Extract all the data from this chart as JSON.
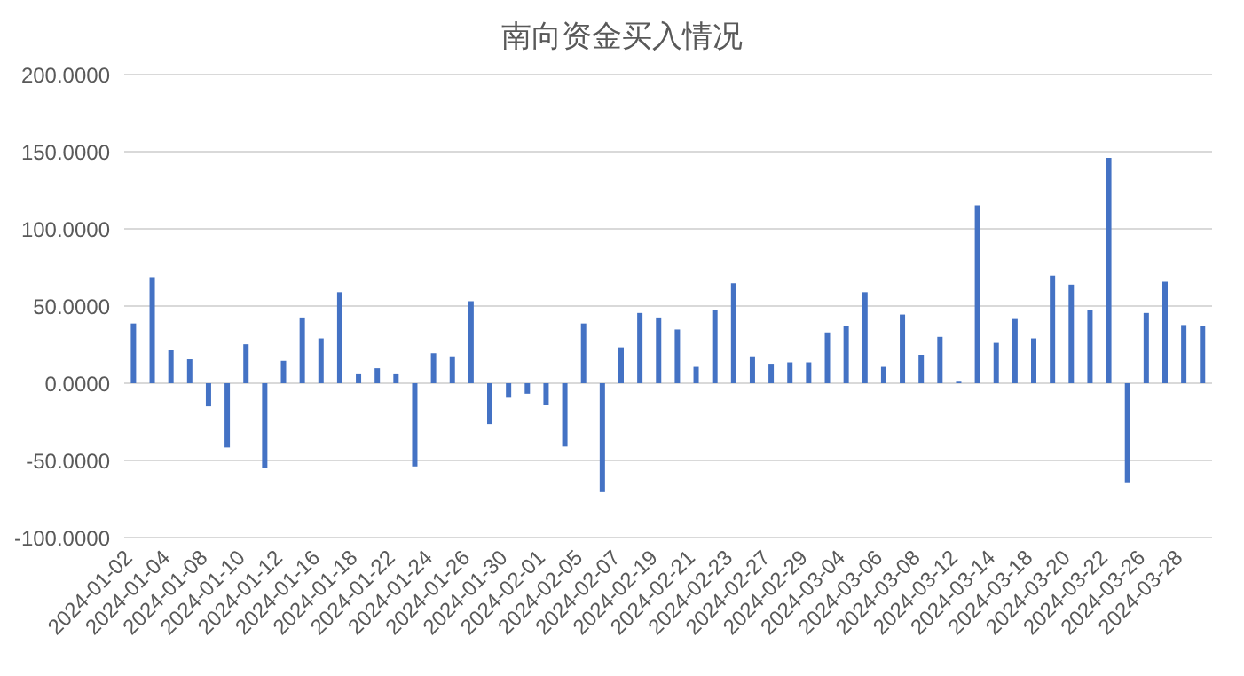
{
  "chart_data": {
    "type": "bar",
    "title": "南向资金买入情况",
    "categories": [
      "2024-01-02",
      null,
      "2024-01-04",
      null,
      "2024-01-08",
      null,
      "2024-01-10",
      null,
      "2024-01-12",
      null,
      "2024-01-16",
      null,
      "2024-01-18",
      null,
      "2024-01-22",
      null,
      "2024-01-24",
      null,
      "2024-01-26",
      null,
      "2024-01-30",
      null,
      "2024-02-01",
      null,
      "2024-02-05",
      null,
      "2024-02-07",
      null,
      "2024-02-19",
      null,
      "2024-02-21",
      null,
      "2024-02-23",
      null,
      "2024-02-27",
      null,
      "2024-02-29",
      null,
      "2024-03-04",
      null,
      "2024-03-06",
      null,
      "2024-03-08",
      null,
      "2024-03-12",
      null,
      "2024-03-14",
      null,
      "2024-03-18",
      null,
      "2024-03-20",
      null,
      "2024-03-22",
      null,
      "2024-03-26",
      null,
      "2024-03-28",
      null
    ],
    "values": [
      38.7,
      68.7,
      21.3,
      15.5,
      -15,
      -41.6,
      25.2,
      -54.8,
      14.5,
      42.6,
      29,
      59,
      5.8,
      9.7,
      5.8,
      -53.9,
      19.4,
      17.4,
      53.2,
      -26.5,
      -9.4,
      -6.8,
      -14.2,
      -41,
      38.7,
      -70.6,
      23.2,
      45.5,
      42.6,
      34.8,
      10.6,
      47.4,
      64.8,
      17.4,
      12.6,
      13.5,
      13.5,
      32.9,
      36.8,
      59,
      10.6,
      44.5,
      18.4,
      30,
      1,
      115.2,
      26.1,
      41.6,
      29,
      69.7,
      63.9,
      47.4,
      146,
      -64.2,
      45.5,
      65.8,
      37.7,
      36.8
    ],
    "color": "#4472c4",
    "ylim": [
      -100,
      200
    ],
    "yticks": [
      {
        "value": -100,
        "label": "-100.0000"
      },
      {
        "value": -50,
        "label": "-50.0000"
      },
      {
        "value": 0,
        "label": "0.0000"
      },
      {
        "value": 50,
        "label": "50.0000"
      },
      {
        "value": 100,
        "label": "100.0000"
      },
      {
        "value": 150,
        "label": "150.0000"
      },
      {
        "value": 200,
        "label": "200.0000"
      }
    ],
    "grid": "y"
  }
}
